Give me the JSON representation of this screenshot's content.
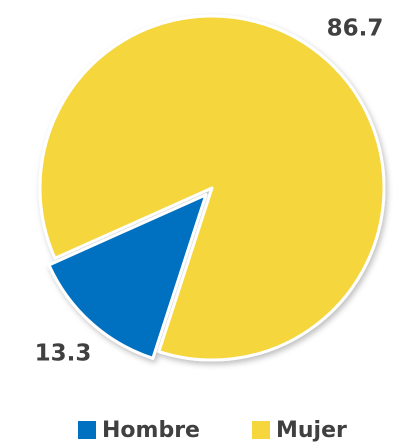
{
  "chart_data": {
    "type": "pie",
    "categories": [
      "Hombre",
      "Mujer"
    ],
    "values": [
      13.3,
      86.7
    ],
    "colors": [
      "#0070c0",
      "#f5d63d"
    ],
    "start_angle": 198,
    "explode": [
      true,
      false
    ],
    "legend": "bottom"
  }
}
